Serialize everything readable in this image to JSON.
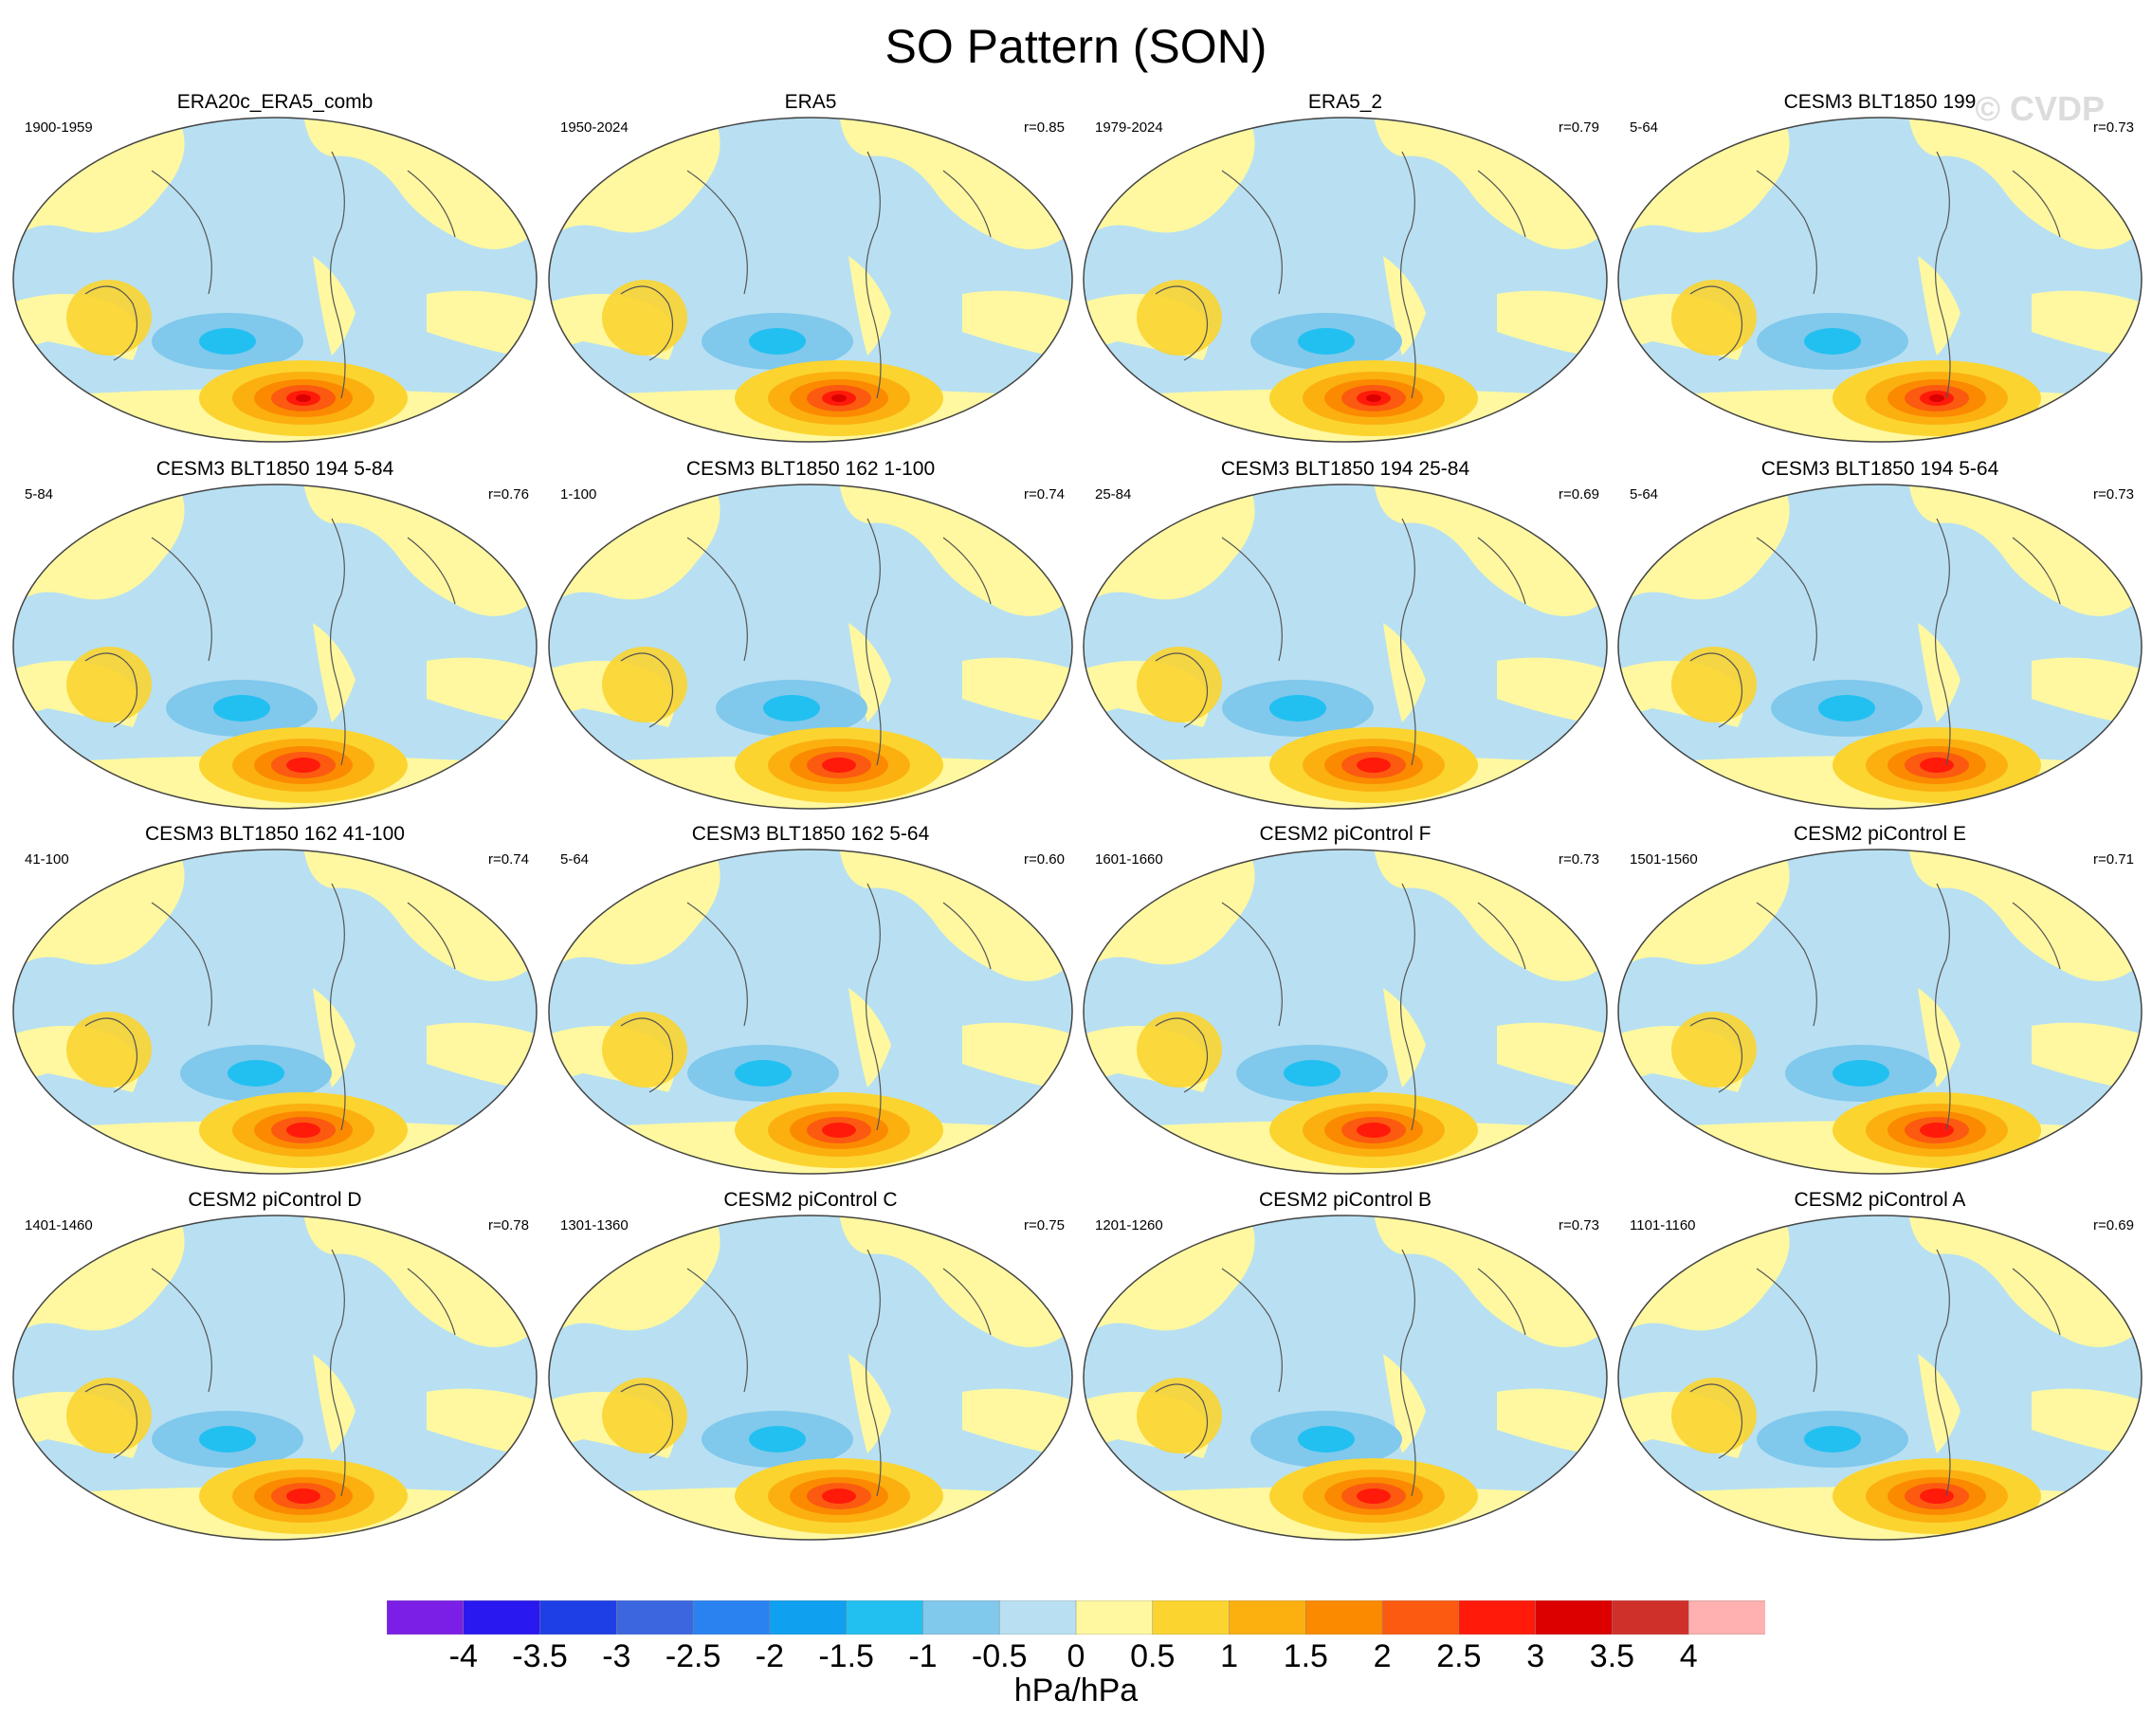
{
  "title": "SO Pattern (SON)",
  "watermark": "© CVDP",
  "panels": [
    {
      "title": "ERA20c_ERA5_comb",
      "range": "1900-1959",
      "corr": ""
    },
    {
      "title": "ERA5",
      "range": "1950-2024",
      "corr": "r=0.85"
    },
    {
      "title": "ERA5_2",
      "range": "1979-2024",
      "corr": "r=0.79"
    },
    {
      "title": "CESM3 BLT1850 199",
      "range": "5-64",
      "corr": "r=0.73"
    },
    {
      "title": "CESM3 BLT1850 194 5-84",
      "range": "5-84",
      "corr": "r=0.76"
    },
    {
      "title": "CESM3 BLT1850 162 1-100",
      "range": "1-100",
      "corr": "r=0.74"
    },
    {
      "title": "CESM3 BLT1850 194 25-84",
      "range": "25-84",
      "corr": "r=0.69"
    },
    {
      "title": "CESM3 BLT1850 194 5-64",
      "range": "5-64",
      "corr": "r=0.73"
    },
    {
      "title": "CESM3 BLT1850 162 41-100",
      "range": "41-100",
      "corr": "r=0.74"
    },
    {
      "title": "CESM3 BLT1850 162 5-64",
      "range": "5-64",
      "corr": "r=0.60"
    },
    {
      "title": "CESM2 piControl F",
      "range": "1601-1660",
      "corr": "r=0.73"
    },
    {
      "title": "CESM2 piControl E",
      "range": "1501-1560",
      "corr": "r=0.71"
    },
    {
      "title": "CESM2 piControl D",
      "range": "1401-1460",
      "corr": "r=0.78"
    },
    {
      "title": "CESM2 piControl C",
      "range": "1301-1360",
      "corr": "r=0.75"
    },
    {
      "title": "CESM2 piControl B",
      "range": "1201-1260",
      "corr": "r=0.73"
    },
    {
      "title": "CESM2 piControl A",
      "range": "1101-1160",
      "corr": "r=0.69"
    }
  ],
  "colorbar": {
    "colors": [
      "#7c1fe6",
      "#2a18f0",
      "#1e3fe6",
      "#3c66e0",
      "#2a82f0",
      "#10a0f0",
      "#22c0f0",
      "#80c8ec",
      "#b8e0f2",
      "#fff8a0",
      "#fbd430",
      "#fbb010",
      "#fb8a00",
      "#fb5a10",
      "#ff1a0a",
      "#dc0000",
      "#d0302a",
      "#ffb0b0"
    ],
    "ticks": [
      "-4",
      "-3.5",
      "-3",
      "-2.5",
      "-2",
      "-1.5",
      "-1",
      "-0.5",
      "0",
      "0.5",
      "1",
      "1.5",
      "2",
      "2.5",
      "3",
      "3.5",
      "4"
    ],
    "units": "hPa/hPa"
  }
}
